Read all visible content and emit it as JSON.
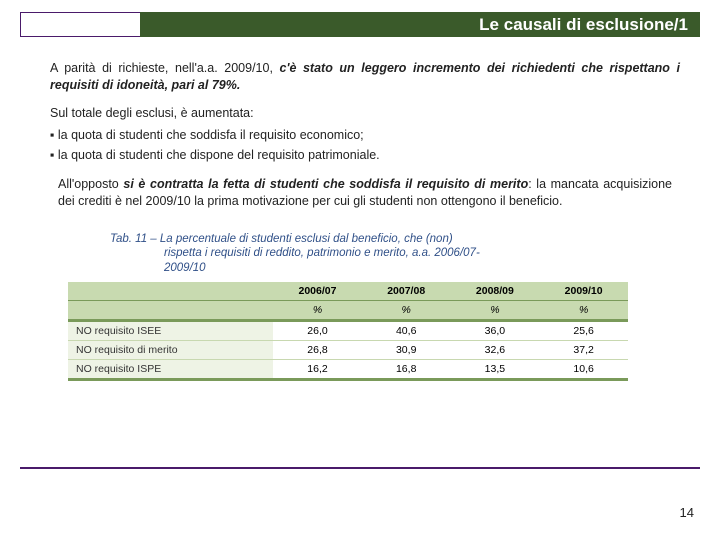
{
  "title": "Le causali di esclusione/1",
  "para1_lead": "A parità di richieste, nell'a.a. 2009/10, ",
  "para1_emph": "c'è stato un leggero incremento dei richiedenti che rispettano i requisiti di idoneità, pari al 79%.",
  "para2": "Sul totale degli esclusi, è aumentata:",
  "bullet1": "la quota di studenti che soddisfa il requisito economico;",
  "bullet2": "la quota di studenti che dispone del requisito patrimoniale.",
  "box_lead": "All'opposto ",
  "box_emph": "si è contratta la fetta di studenti che soddisfa il requisito di merito",
  "box_tail": ": la mancata acquisizione dei crediti è nel 2009/10 la prima motivazione per cui gli studenti non ottengono il beneficio.",
  "caption_line1": "Tab. 11 – La percentuale di studenti esclusi dal beneficio, che (non)",
  "caption_line2": "rispetta i requisiti di reddito, patrimonio e merito, a.a. 2006/07-",
  "caption_line3": "2009/10",
  "table": {
    "type": "table",
    "years": [
      "2006/07",
      "2007/08",
      "2008/09",
      "2009/10"
    ],
    "sub": "%",
    "row_labels": [
      "NO requisito ISEE",
      "NO requisito di merito",
      "NO requisito ISPE"
    ],
    "rows": [
      [
        "26,0",
        "40,6",
        "36,0",
        "25,6"
      ],
      [
        "26,8",
        "30,9",
        "32,6",
        "37,2"
      ],
      [
        "16,2",
        "16,8",
        "13,5",
        "10,6"
      ]
    ],
    "colors": {
      "header_bg": "#c8dab0",
      "row_label_bg": "#eef3e5",
      "border": "#7a9a5a"
    }
  },
  "page_number": "14",
  "colors": {
    "frame": "#4a1a6a",
    "title_bg": "#3a5a2a",
    "caption": "#305088"
  }
}
